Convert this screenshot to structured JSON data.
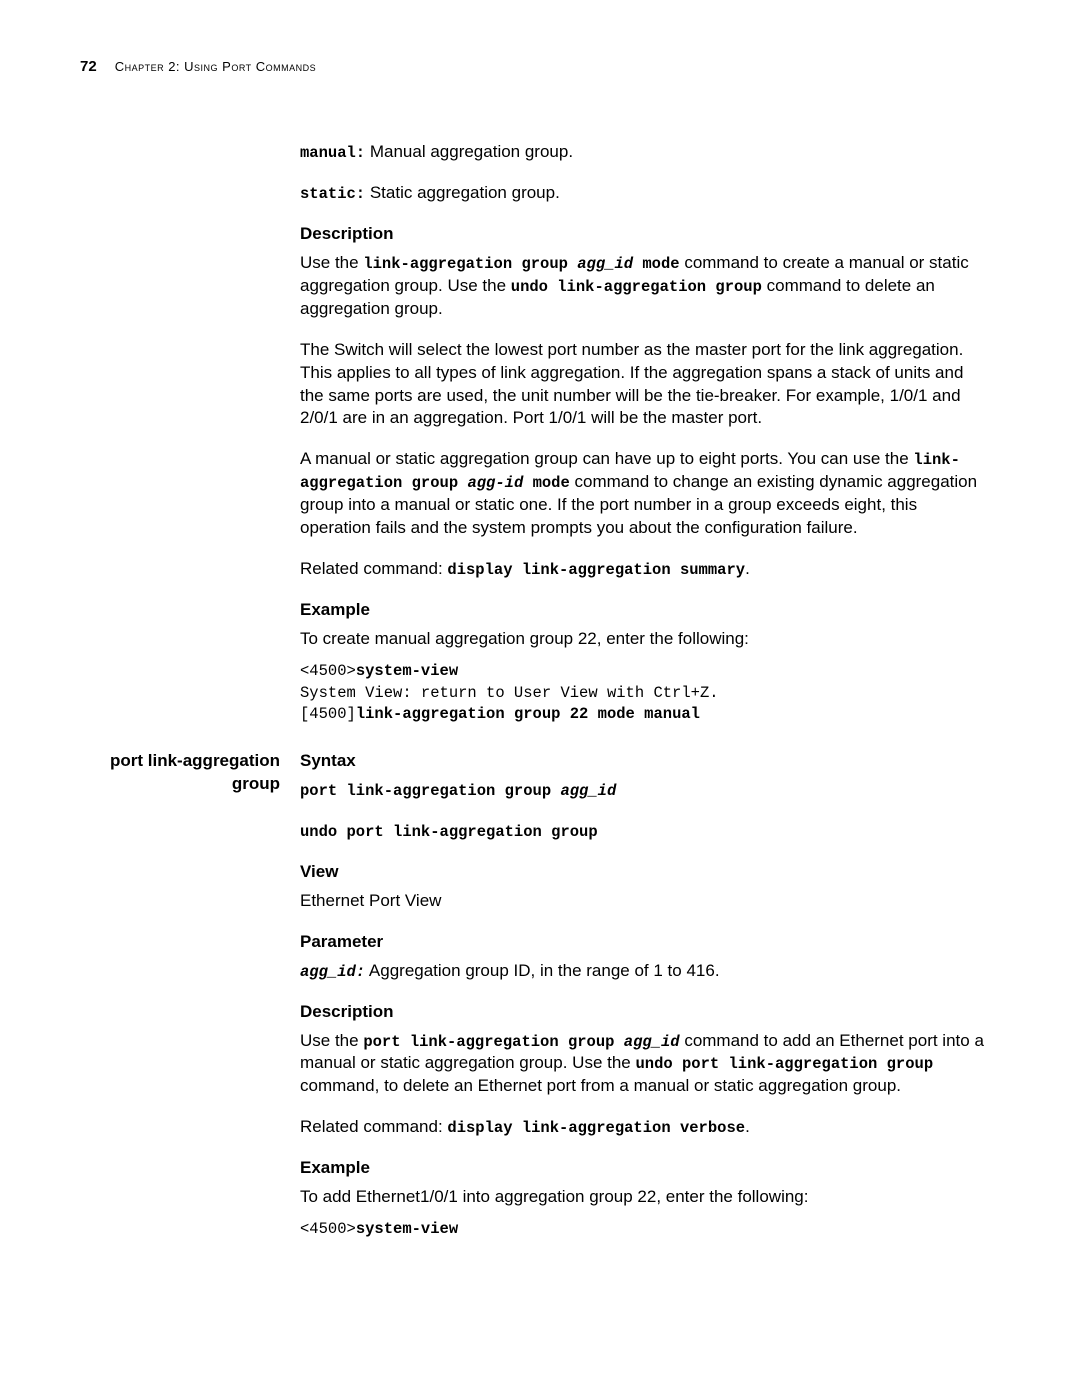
{
  "header": {
    "page_number": "72",
    "chapter_label": "Chapter 2: Using Port Commands"
  },
  "section1": {
    "manual_code": "manual:",
    "manual_text": " Manual aggregation group.",
    "static_code": "static:",
    "static_text": " Static aggregation group.",
    "desc_heading": "Description",
    "desc_p1_a": "Use the ",
    "desc_p1_code1": "link-aggregation group",
    "desc_p1_code1_it": " agg_id ",
    "desc_p1_code1b": "mode",
    "desc_p1_b": " command to create a manual or static aggregation group. Use the ",
    "desc_p1_code2": "undo link-aggregation group",
    "desc_p1_c": " command to delete an aggregation group.",
    "desc_p2": "The Switch will select the lowest port number as the master port for the link aggregation. This applies to all types of link aggregation. If the aggregation spans a stack of units and the same ports are used, the unit number will be the tie-breaker. For example, 1/0/1 and 2/0/1 are in an aggregation. Port 1/0/1 will be the master port.",
    "desc_p3_a": "A manual or static aggregation group can have up to eight ports. You can use the ",
    "desc_p3_l": "l",
    "desc_p3_code1": "ink-aggregation group",
    "desc_p3_code1_it": " agg-id ",
    "desc_p3_code1b": "mode",
    "desc_p3_b": " command to change an existing dynamic aggregation group into a manual or static one. If the port number in a group exceeds eight, this operation fails and the system prompts you about the configuration failure.",
    "related_a": "Related command: ",
    "related_code": "display link-aggregation summary",
    "related_b": ".",
    "ex_heading": "Example",
    "ex_p": "To create manual aggregation group 22, enter the following:",
    "code_line1a": "<4500>",
    "code_line1b": "system-view",
    "code_line2": "System View: return to User View with Ctrl+Z.",
    "code_line3a": "[4500]",
    "code_line3b": "link-aggregation group 22 mode manual"
  },
  "section2": {
    "side_label": "port link-aggregation group",
    "syntax_heading": "Syntax",
    "syntax_l1a": "port link-aggregation group",
    "syntax_l1b": " agg_id",
    "syntax_l2": "undo port link-aggregation group",
    "view_heading": "View",
    "view_text": "Ethernet Port View",
    "param_heading": "Parameter",
    "param_code": "agg_id:",
    "param_text": " Aggregation group ID, in the range of 1 to 416.",
    "desc_heading": "Description",
    "desc_a": "Use the ",
    "desc_code1": "port link-aggregation group",
    "desc_code1_it": " agg_id",
    "desc_b": " command to add an Ethernet port into a manual or static aggregation group. Use the ",
    "desc_code2": "undo port link-aggregation group",
    "desc_c": " command, to delete an Ethernet port from a manual or static aggregation group.",
    "related_a": "Related command: ",
    "related_code": "display link-aggregation verbose",
    "related_b": ".",
    "ex_heading": "Example",
    "ex_p": "To add Ethernet1/0/1 into aggregation group 22, enter the following:",
    "code_line1a": "<4500>",
    "code_line1b": "system-view"
  }
}
